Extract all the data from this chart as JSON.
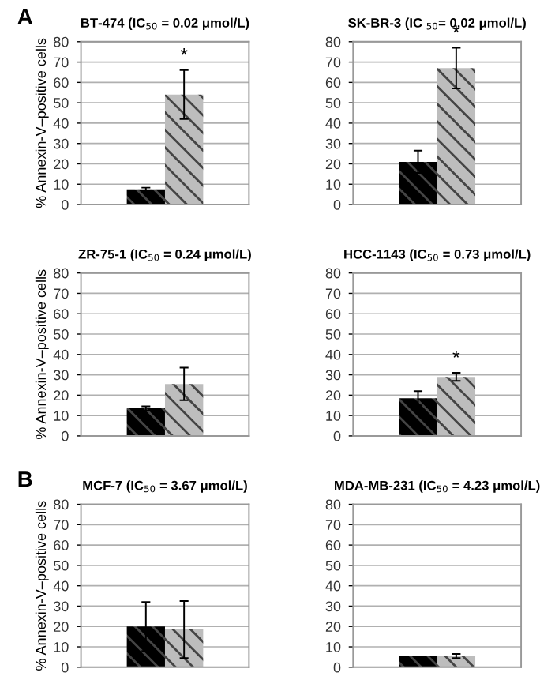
{
  "chart_data": [
    {
      "type": "bar",
      "title": "BT-474 (IC$_{50}$ = 0.02 μmol/L)",
      "ylabel": "% Annexin-V–positive cells",
      "categories": [
        null,
        null
      ],
      "values": [
        7.5,
        54
      ],
      "errors": [
        0.8,
        12
      ],
      "colors": [
        "#000000",
        "#bdbdbd"
      ],
      "ylim": [
        0,
        80
      ],
      "yticks": [
        0,
        10,
        20,
        30,
        40,
        50,
        60,
        70,
        80
      ],
      "grid": "y",
      "value_labels": [
        null,
        "*"
      ],
      "annotations": [
        "A"
      ]
    },
    {
      "type": "bar",
      "title": "SK-BR-3 (IC $_{50}$= 0.02 μmol/L)",
      "categories": [
        null,
        null
      ],
      "values": [
        21,
        67
      ],
      "errors": [
        5.5,
        10
      ],
      "colors": [
        "#000000",
        "#bdbdbd"
      ],
      "ylim": [
        0,
        80
      ],
      "yticks": [
        0,
        10,
        20,
        30,
        40,
        50,
        60,
        70,
        80
      ],
      "grid": "y",
      "value_labels": [
        null,
        "*"
      ]
    },
    {
      "type": "bar",
      "title": "ZR-75-1 (IC$_{50}$ = 0.24 μmol/L)",
      "ylabel": "% Annexin-V–positive cells",
      "categories": [
        null,
        null
      ],
      "values": [
        13.5,
        25.5
      ],
      "errors": [
        1,
        8
      ],
      "colors": [
        "#000000",
        "#bdbdbd"
      ],
      "ylim": [
        0,
        80
      ],
      "yticks": [
        0,
        10,
        20,
        30,
        40,
        50,
        60,
        70,
        80
      ],
      "grid": "y"
    },
    {
      "type": "bar",
      "title": "HCC-1143 (IC$_{50}$ = 0.73 μmol/L)",
      "categories": [
        null,
        null
      ],
      "values": [
        18.5,
        29
      ],
      "errors": [
        3.5,
        2
      ],
      "colors": [
        "#000000",
        "#bdbdbd"
      ],
      "ylim": [
        0,
        80
      ],
      "yticks": [
        0,
        10,
        20,
        30,
        40,
        50,
        60,
        70,
        80
      ],
      "grid": "y",
      "value_labels": [
        null,
        "*"
      ]
    },
    {
      "type": "bar",
      "title": "MCF-7 (IC$_{50}$ = 3.67 μmol/L)",
      "ylabel": "% Annexin-V–positive cells",
      "categories": [
        null,
        null
      ],
      "values": [
        20,
        18.5
      ],
      "errors": [
        12,
        14
      ],
      "colors": [
        "#000000",
        "#bdbdbd"
      ],
      "ylim": [
        0,
        80
      ],
      "yticks": [
        0,
        10,
        20,
        30,
        40,
        50,
        60,
        70,
        80
      ],
      "grid": "y",
      "annotations": [
        "B"
      ]
    },
    {
      "type": "bar",
      "title": "MDA-MB-231 (IC$_{50}$ = 4.23 μmol/L)",
      "categories": [
        null,
        null
      ],
      "values": [
        5.5,
        5.5
      ],
      "errors": [
        null,
        1
      ],
      "colors": [
        "#000000",
        "#bdbdbd"
      ],
      "ylim": [
        0,
        80
      ],
      "yticks": [
        0,
        10,
        20,
        30,
        40,
        50,
        60,
        70,
        80
      ],
      "grid": "y"
    }
  ]
}
